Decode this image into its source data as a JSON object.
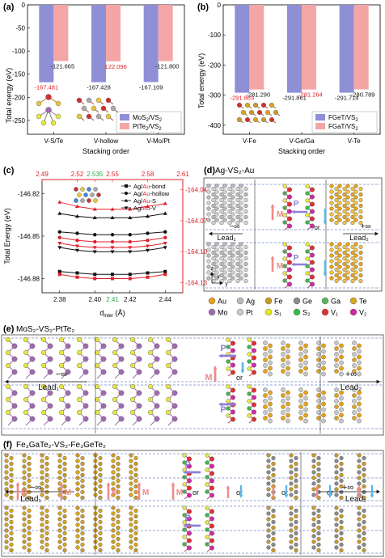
{
  "panel_labels": {
    "a": "(a)",
    "b": "(b)",
    "c": "(c)",
    "d": "(d)",
    "e": "(e)",
    "f": "(f)"
  },
  "colors": {
    "blue_bar": "#8f8fd6",
    "red_bar": "#f4a6a6",
    "red_text": "#e0202a",
    "red_axis": "#e0202a",
    "green": "#2aa84a",
    "purple": "#6a4ad0",
    "magenta": "#d62f7a",
    "pink_arrow": "#ef8a8a",
    "cyan_arrow": "#58b8e8",
    "lavender_arrow": "#8e7fd8"
  },
  "chart_data": [
    {
      "type": "bar",
      "panel": "a",
      "ylabel": "Total energy (eV)",
      "xlabel": "Stacking order",
      "categories": [
        "V-S/Te",
        "V-hollow",
        "V-Mo/Pt"
      ],
      "series": [
        {
          "name": "MoS2/VS2",
          "values": [
            -167.481,
            -167.428,
            -167.109
          ]
        },
        {
          "name": "PtTe2/VS2",
          "values": [
            -121.665,
            -122.096,
            -121.8
          ]
        }
      ],
      "value_labels": {
        "blue": [
          "-167.481",
          "-167.428",
          "-167.109"
        ],
        "red": [
          "-121.665",
          "-122.096",
          "-121.800"
        ]
      },
      "ylim": [
        -280,
        0
      ],
      "yticks": [
        "0",
        "-50",
        "-100",
        "-150",
        "-200",
        "-250"
      ],
      "legend": [
        "MoS$_2$/VS$_2$",
        "PtTe$_2$/VS$_2$"
      ],
      "legend_position": "bottom-right"
    },
    {
      "type": "bar",
      "panel": "b",
      "ylabel": "Total energy (eV)",
      "xlabel": "Stacking order",
      "categories": [
        "V-Fe",
        "V-Ge/Ga",
        "V-Te"
      ],
      "series": [
        {
          "name": "FGeT/VS2",
          "values": [
            -291.863,
            -291.861,
            -291.714
          ]
        },
        {
          "name": "FGaT/VS2",
          "values": [
            -281.29,
            -281.264,
            -280.789
          ]
        }
      ],
      "value_labels": {
        "blue": [
          "-291.863",
          "-291.861",
          "-291.714"
        ],
        "red": [
          "-281.290",
          "-281.264",
          "-280.789"
        ]
      },
      "ylim": [
        -430,
        0
      ],
      "yticks": [
        "0",
        "-100",
        "-200",
        "-300",
        "-400"
      ],
      "legend_position": "bottom-right"
    },
    {
      "type": "line",
      "panel": "c",
      "ylabel": "Total Energy (eV)",
      "xlabel": "d_inter (Å)",
      "xticks_bottom": [
        "2.38",
        "2.40",
        "2.41",
        "2.42",
        "2.44"
      ],
      "xticks_top": [
        "2.49",
        "2.52",
        "2.535",
        "2.55",
        "2.58",
        "2.61"
      ],
      "yticks_left": [
        "-146.82",
        "-146.85",
        "-146.88"
      ],
      "yticks_right": [
        "-164.04",
        "-164.07",
        "-164.10",
        "-164.13"
      ],
      "xlim_bottom": [
        2.37,
        2.45
      ],
      "ylim_left": [
        -146.89,
        -146.81
      ],
      "legend": [
        {
          "prefix": "Ag/",
          "au": "Au",
          "suffix": "-bond",
          "marker": "square"
        },
        {
          "prefix": "Ag/",
          "au": "Au",
          "suffix": "-hollow",
          "marker": "circle"
        },
        {
          "prefix": "Ag/",
          "au": "Au",
          "suffix": "-S",
          "marker": "triangle-up"
        },
        {
          "prefix": "Ag/",
          "au": "Au",
          "suffix": "-V",
          "marker": "triangle-down"
        }
      ],
      "series": [
        {
          "name": "Ag-bond",
          "color": "#111111",
          "marker": "square",
          "points": [
            [
              2.38,
              -146.875
            ],
            [
              2.39,
              -146.876
            ],
            [
              2.4,
              -146.877
            ],
            [
              2.41,
              -146.877
            ],
            [
              2.42,
              -146.877
            ],
            [
              2.43,
              -146.876
            ],
            [
              2.44,
              -146.875
            ]
          ]
        },
        {
          "name": "Au-bond",
          "color": "#e0202a",
          "marker": "square",
          "points": [
            [
              2.38,
              -146.877
            ],
            [
              2.39,
              -146.879
            ],
            [
              2.4,
              -146.88
            ],
            [
              2.41,
              -146.88
            ],
            [
              2.42,
              -146.88
            ],
            [
              2.43,
              -146.879
            ],
            [
              2.44,
              -146.877
            ]
          ]
        },
        {
          "name": "Ag-hollow",
          "color": "#111111",
          "marker": "circle",
          "points": [
            [
              2.38,
              -146.847
            ],
            [
              2.39,
              -146.848
            ],
            [
              2.4,
              -146.849
            ],
            [
              2.41,
              -146.849
            ],
            [
              2.42,
              -146.849
            ],
            [
              2.43,
              -146.848
            ],
            [
              2.44,
              -146.847
            ]
          ]
        },
        {
          "name": "Au-hollow",
          "color": "#e0202a",
          "marker": "circle",
          "points": [
            [
              2.38,
              -146.851
            ],
            [
              2.39,
              -146.853
            ],
            [
              2.4,
              -146.854
            ],
            [
              2.41,
              -146.854
            ],
            [
              2.42,
              -146.854
            ],
            [
              2.43,
              -146.853
            ],
            [
              2.44,
              -146.851
            ]
          ]
        },
        {
          "name": "Ag-S",
          "color": "#111111",
          "marker": "triangle-up",
          "points": [
            [
              2.38,
              -146.834
            ],
            [
              2.39,
              -146.836
            ],
            [
              2.4,
              -146.837
            ],
            [
              2.41,
              -146.837
            ],
            [
              2.42,
              -146.837
            ],
            [
              2.43,
              -146.836
            ],
            [
              2.44,
              -146.834
            ]
          ]
        },
        {
          "name": "Au-S",
          "color": "#e0202a",
          "marker": "triangle-up",
          "points": [
            [
              2.38,
              -146.826
            ],
            [
              2.39,
              -146.829
            ],
            [
              2.4,
              -146.831
            ],
            [
              2.41,
              -146.831
            ],
            [
              2.42,
              -146.831
            ],
            [
              2.43,
              -146.829
            ],
            [
              2.44,
              -146.827
            ]
          ]
        },
        {
          "name": "Ag-V",
          "color": "#111111",
          "marker": "triangle-down",
          "points": [
            [
              2.38,
              -146.858
            ],
            [
              2.39,
              -146.86
            ],
            [
              2.4,
              -146.861
            ],
            [
              2.41,
              -146.861
            ],
            [
              2.42,
              -146.861
            ],
            [
              2.43,
              -146.86
            ],
            [
              2.44,
              -146.858
            ]
          ]
        },
        {
          "name": "Au-V",
          "color": "#e0202a",
          "marker": "triangle-down",
          "points": [
            [
              2.38,
              -146.855
            ],
            [
              2.39,
              -146.857
            ],
            [
              2.4,
              -146.858
            ],
            [
              2.41,
              -146.858
            ],
            [
              2.42,
              -146.858
            ],
            [
              2.43,
              -146.857
            ],
            [
              2.44,
              -146.855
            ]
          ]
        }
      ]
    }
  ],
  "panel_d": {
    "title": "Ag-VS₂-Au",
    "lead1": "Lead₁",
    "lead2": "Lead₂",
    "minus_inf": "−∞",
    "plus_inf": "+∞",
    "M": "M",
    "P": "P",
    "or": "or",
    "axes": {
      "x": "x",
      "y": "y",
      "z": "z"
    },
    "legend": [
      {
        "label": "Au",
        "color": "#e6a31a"
      },
      {
        "label": "Ag",
        "color": "#b8b8b8"
      },
      {
        "label": "Fe",
        "color": "#c79a2c"
      },
      {
        "label": "Ge",
        "color": "#8a8a8a"
      },
      {
        "label": "Ga",
        "color": "#5ab55a"
      },
      {
        "label": "Te",
        "color": "#d9a520"
      },
      {
        "label": "Mo",
        "color": "#a06ab0"
      },
      {
        "label": "Pt",
        "color": "#c8c8c8"
      },
      {
        "label": "S₁",
        "color": "#e6e61a"
      },
      {
        "label": "S₂",
        "color": "#3cb84a"
      },
      {
        "label": "V₁",
        "color": "#e03030"
      },
      {
        "label": "V₂",
        "color": "#d02aa0"
      }
    ]
  },
  "panel_e": {
    "title": "MoS₂-VS₂-PtTe₂",
    "minus_inf": "−∞",
    "plus_inf": "+∞",
    "lead1": "Lead₁",
    "lead2": "Lead₂",
    "M": "M",
    "P": "P",
    "or": "or"
  },
  "panel_f": {
    "title": "Fe₃GaTe₂-VS₂-Fe₃GeTe₂",
    "minus_inf": "−∞",
    "plus_inf": "+∞",
    "lead1": "Lead₁",
    "lead2": "Lead₂",
    "M": "M",
    "P": "P",
    "or": "or"
  }
}
